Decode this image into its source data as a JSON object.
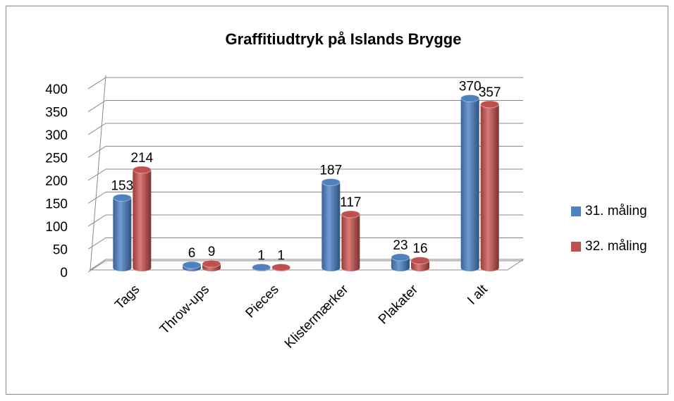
{
  "chart_data": {
    "type": "bar",
    "title": "Graffitiudtryk på Islands Brygge",
    "categories": [
      "Tags",
      "Throw-ups",
      "Pieces",
      "Klistermærker",
      "Plakater",
      "I alt"
    ],
    "series": [
      {
        "name": "31. måling",
        "color": "#4f81bd",
        "values": [
          153,
          6,
          1,
          187,
          23,
          370
        ]
      },
      {
        "name": "32. måling",
        "color": "#c0504d",
        "values": [
          214,
          9,
          1,
          117,
          16,
          357
        ]
      }
    ],
    "ylim": [
      0,
      400
    ],
    "yticks": [
      0,
      50,
      100,
      150,
      200,
      250,
      300,
      350,
      400
    ],
    "grid": true,
    "legend": "right"
  }
}
